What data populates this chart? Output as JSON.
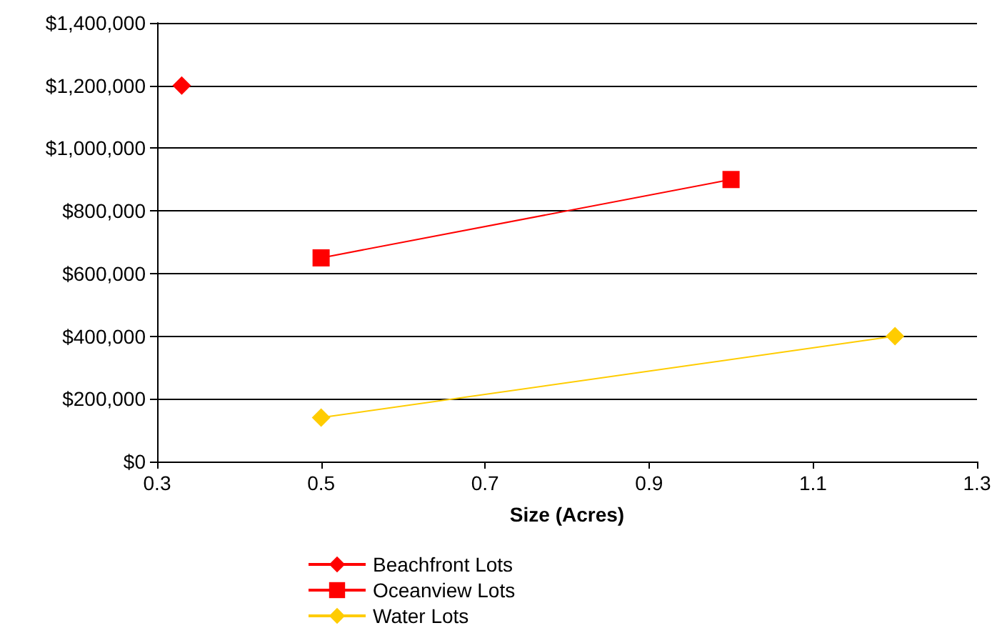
{
  "chart_data": {
    "type": "line",
    "xlabel": "Size (Acres)",
    "xlim": [
      0.3,
      1.3
    ],
    "xticks": [
      0.3,
      0.5,
      0.7,
      0.9,
      1.1,
      1.3
    ],
    "ylim": [
      0,
      1400000
    ],
    "yticks": [
      {
        "value": 0,
        "label": "$0"
      },
      {
        "value": 200000,
        "label": "$200,000"
      },
      {
        "value": 400000,
        "label": "$400,000"
      },
      {
        "value": 600000,
        "label": "$600,000"
      },
      {
        "value": 800000,
        "label": "$800,000"
      },
      {
        "value": 1000000,
        "label": "$1,000,000"
      },
      {
        "value": 1200000,
        "label": "$1,200,000"
      },
      {
        "value": 1400000,
        "label": "$1,400,000"
      }
    ],
    "grid": "y",
    "legend": "bottom",
    "line_style": "solid",
    "series": [
      {
        "name": "Beachfront Lots",
        "color": "#ff0000",
        "marker": "diamond",
        "x": [
          0.33
        ],
        "values": [
          1200000
        ]
      },
      {
        "name": "Oceanview Lots",
        "color": "#ff0000",
        "marker": "square",
        "x": [
          0.5,
          1.0
        ],
        "values": [
          650000,
          900000
        ]
      },
      {
        "name": "Water Lots",
        "color": "#ffcc00",
        "marker": "diamond",
        "x": [
          0.5,
          1.2
        ],
        "values": [
          140000,
          400000
        ]
      }
    ]
  }
}
